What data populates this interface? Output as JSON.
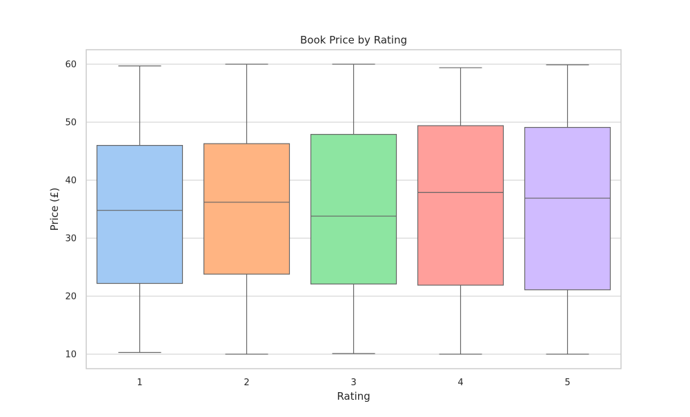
{
  "chart_data": {
    "type": "box",
    "title": "Book Price by Rating",
    "xlabel": "Rating",
    "ylabel": "Price (£)",
    "categories": [
      "1",
      "2",
      "3",
      "4",
      "5"
    ],
    "ylim": [
      7.5,
      62.5
    ],
    "yticks": [
      "10",
      "20",
      "30",
      "40",
      "50",
      "60"
    ],
    "grid": true,
    "colors": [
      "#a1c9f4",
      "#ffb482",
      "#8de5a1",
      "#ff9f9b",
      "#d0bbff"
    ],
    "edge_color": "#646464",
    "grid_color": "#cccccc",
    "boxes": [
      {
        "whislo": 10.3,
        "q1": 22.2,
        "med": 34.8,
        "q3": 46.0,
        "whishi": 59.7
      },
      {
        "whislo": 10.0,
        "q1": 23.8,
        "med": 36.2,
        "q3": 46.3,
        "whishi": 60.0
      },
      {
        "whislo": 10.1,
        "q1": 22.1,
        "med": 33.8,
        "q3": 47.9,
        "whishi": 60.0
      },
      {
        "whislo": 10.0,
        "q1": 21.9,
        "med": 37.9,
        "q3": 49.4,
        "whishi": 59.4
      },
      {
        "whislo": 10.0,
        "q1": 21.1,
        "med": 36.9,
        "q3": 49.1,
        "whishi": 59.9
      }
    ]
  }
}
